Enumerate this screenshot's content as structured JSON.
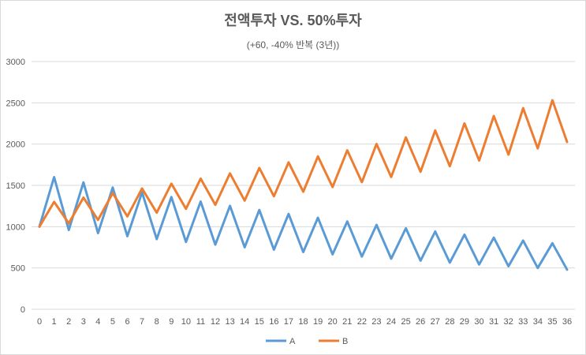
{
  "chart_data": {
    "type": "line",
    "title": "전액투자 VS. 50%투자",
    "subtitle": "(+60, -40% 반복 (3년))",
    "xlabel": "",
    "ylabel": "",
    "x": [
      0,
      1,
      2,
      3,
      4,
      5,
      6,
      7,
      8,
      9,
      10,
      11,
      12,
      13,
      14,
      15,
      16,
      17,
      18,
      19,
      20,
      21,
      22,
      23,
      24,
      25,
      26,
      27,
      28,
      29,
      30,
      31,
      32,
      33,
      34,
      35,
      36
    ],
    "ylim": [
      0,
      3000
    ],
    "yticks": [
      0,
      500,
      1000,
      1500,
      2000,
      2500,
      3000
    ],
    "grid": true,
    "legend_position": "bottom",
    "series": [
      {
        "name": "A",
        "color": "#5B9BD5",
        "values": [
          1000,
          1600,
          960,
          1536,
          921.6,
          1474.6,
          884.7,
          1415.6,
          849.3,
          1359,
          815.4,
          1304.6,
          782.8,
          1252.4,
          751.4,
          1202.3,
          721.4,
          1154.2,
          692.5,
          1108.1,
          664.8,
          1063.7,
          638.2,
          1021.2,
          612.7,
          980.3,
          588.2,
          941.1,
          564.7,
          903.5,
          542.1,
          867.3,
          520.4,
          832.6,
          499.6,
          799.3,
          479.6
        ]
      },
      {
        "name": "B",
        "color": "#ED7D31",
        "values": [
          1000,
          1300,
          1040,
          1352,
          1081.6,
          1406.1,
          1124.9,
          1462.3,
          1169.9,
          1520.8,
          1216.7,
          1581.7,
          1265.3,
          1644.9,
          1315.9,
          1710.7,
          1368.6,
          1779.1,
          1423.3,
          1850.3,
          1480.2,
          1924.3,
          1539.5,
          2001.3,
          1601,
          2081.3,
          1665.1,
          2164.6,
          1731.7,
          2251.2,
          1800.9,
          2341.2,
          1873,
          2434.9,
          1947.9,
          2532.3,
          2025.8
        ]
      }
    ]
  }
}
